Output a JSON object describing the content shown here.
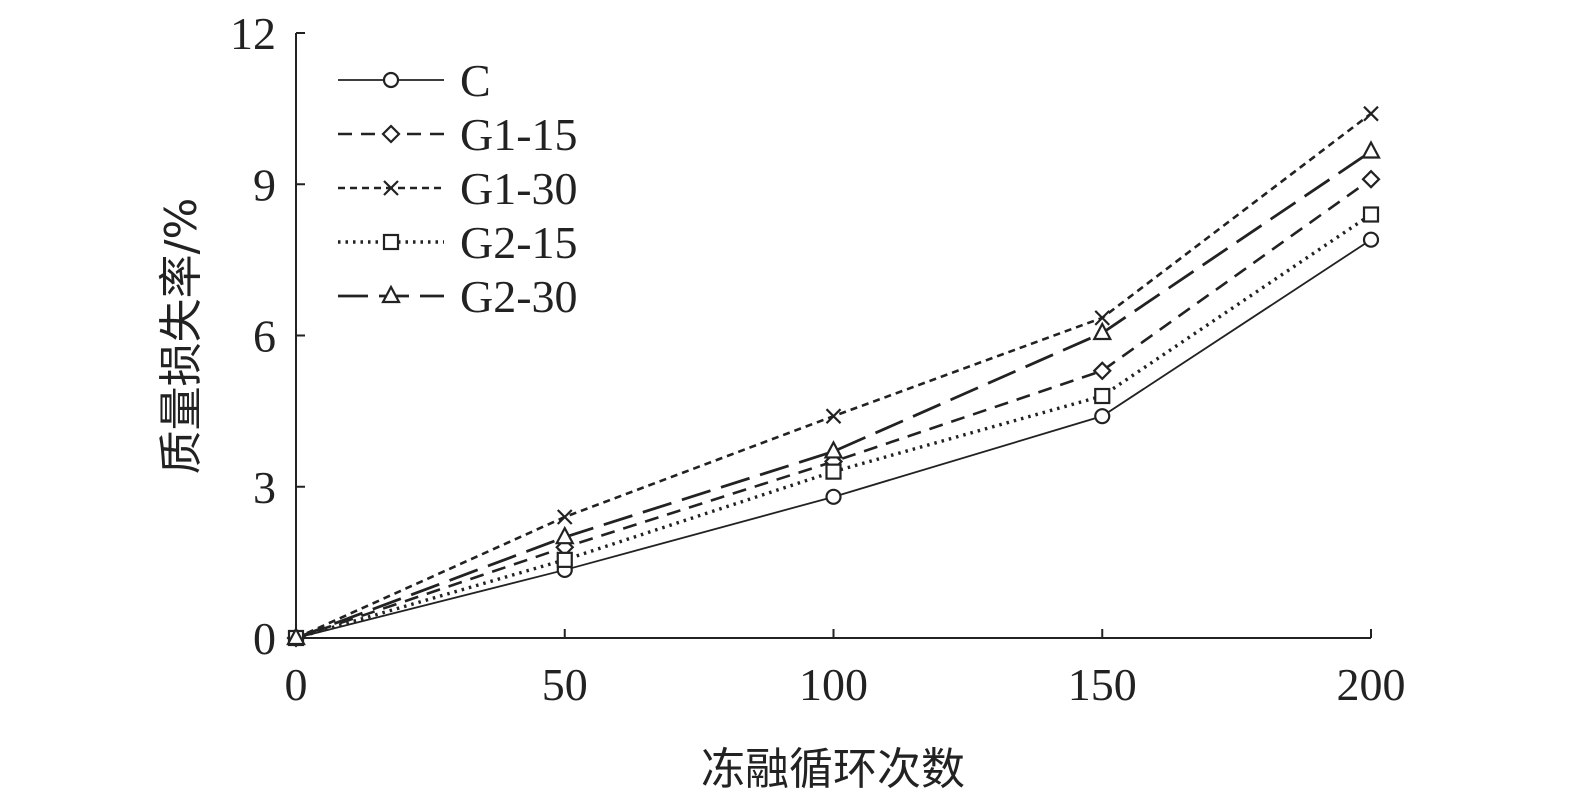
{
  "chart_data": {
    "type": "line",
    "xlabel": "冻融循环次数",
    "ylabel": "质量损失率/%",
    "x": [
      0,
      50,
      100,
      150,
      200
    ],
    "xticks": [
      "0",
      "50",
      "100",
      "150",
      "200"
    ],
    "yticks": [
      "0",
      "3",
      "6",
      "9",
      "12"
    ],
    "xlim": [
      0,
      200
    ],
    "ylim": [
      0,
      12
    ],
    "grid": false,
    "legend_position": "top-left",
    "series": [
      {
        "name": "C",
        "values": [
          0,
          1.35,
          2.8,
          4.4,
          7.9
        ],
        "marker": "circle",
        "dash": "solid"
      },
      {
        "name": "G1-15",
        "values": [
          0,
          1.8,
          3.5,
          5.3,
          9.1
        ],
        "marker": "diamond",
        "dash": "dashed"
      },
      {
        "name": "G1-30",
        "values": [
          0,
          2.4,
          4.4,
          6.35,
          10.4
        ],
        "marker": "x",
        "dash": "short-dash"
      },
      {
        "name": "G2-15",
        "values": [
          0,
          1.55,
          3.3,
          4.8,
          8.4
        ],
        "marker": "square",
        "dash": "dotted"
      },
      {
        "name": "G2-30",
        "values": [
          0,
          2.0,
          3.7,
          6.05,
          9.65
        ],
        "marker": "triangle",
        "dash": "long-dash"
      }
    ]
  }
}
